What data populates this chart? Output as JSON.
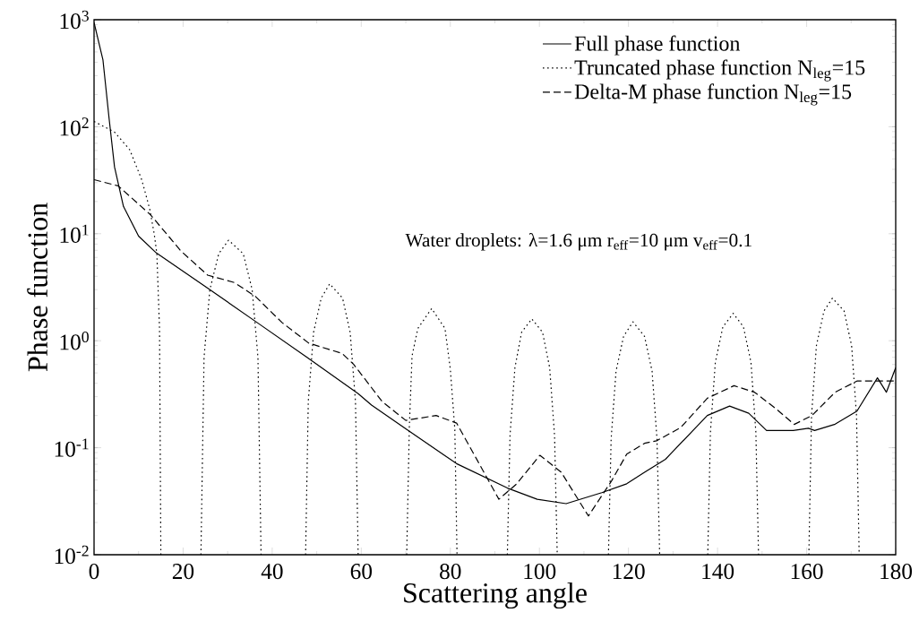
{
  "chart_data": {
    "type": "line",
    "xlabel": "Scattering angle",
    "ylabel": "Phase function",
    "log": "y",
    "xlim": [
      0,
      180
    ],
    "ylim": [
      0.01,
      1000
    ],
    "xticks": [
      0,
      20,
      40,
      60,
      80,
      100,
      120,
      140,
      160,
      180
    ],
    "yticks": [
      {
        "value": 0.01,
        "label": "10$^{-2}$"
      },
      {
        "value": 0.1,
        "label": "10$^{-1}$"
      },
      {
        "value": 1,
        "label": "10$^{0}$"
      },
      {
        "value": 10,
        "label": "10$^{1}$"
      },
      {
        "value": 100,
        "label": "10$^{2}$"
      },
      {
        "value": 1000,
        "label": "10$^{3}$"
      }
    ],
    "legend": "top right",
    "grid": false,
    "annotations": [
      "Water droplets: λ=1.6 μm  r$_{eff}$=10 μm  v$_{eff}$=0.1"
    ],
    "series": [
      {
        "name": "Full phase function",
        "color": "#000000",
        "line_style": "solid",
        "x": [
          0,
          2,
          3.4,
          4.6,
          6.6,
          10,
          14,
          25.5,
          36.6,
          47.6,
          59.3,
          62.3,
          70,
          81.4,
          92.8,
          99.5,
          106,
          114,
          119.6,
          123.6,
          128.3,
          137.7,
          142.7,
          147,
          151,
          157,
          160.4,
          161.8,
          166.4,
          171.3,
          175.9,
          177.9,
          180
        ],
        "values": [
          940,
          420,
          117,
          42,
          18,
          9.5,
          6.6,
          3.1,
          1.48,
          0.71,
          0.32,
          0.25,
          0.15,
          0.071,
          0.042,
          0.033,
          0.03,
          0.038,
          0.046,
          0.059,
          0.078,
          0.2,
          0.245,
          0.21,
          0.145,
          0.145,
          0.152,
          0.145,
          0.166,
          0.22,
          0.45,
          0.33,
          0.56
        ]
      },
      {
        "name": "Truncated phase function   N$_{leg}$=15",
        "color": "#000000",
        "line_style": "dotted",
        "x": [
          0,
          4.6,
          8,
          10.7,
          12.5,
          13.5,
          14.1,
          14.7,
          15,
          19.5,
          24,
          24.7,
          26,
          28,
          30.2,
          33.5,
          35.5,
          36.8,
          37.5,
          42.5,
          47.5,
          48.1,
          49.3,
          51,
          52.9,
          55.8,
          57.5,
          58.7,
          59.3,
          65,
          70.2,
          70.8,
          71.4,
          72.7,
          75.8,
          78.8,
          80,
          81,
          81.5,
          87,
          92.8,
          93.4,
          94.5,
          96,
          98.3,
          100.7,
          102.3,
          103.4,
          104,
          110,
          115.5,
          116.1,
          117.2,
          118.9,
          121,
          123.6,
          125.3,
          126.4,
          127,
          132,
          137.8,
          138.4,
          139.5,
          141.2,
          143.5,
          145.8,
          147.5,
          148.6,
          149.2,
          155,
          160.5,
          161.1,
          162.2,
          163.9,
          165.8,
          168.4,
          170.1,
          171.2,
          171.8
        ],
        "values": [
          112,
          89,
          61,
          32,
          17,
          10,
          6.5,
          1.3,
          0.01,
          null,
          0.01,
          0.7,
          3,
          6.5,
          8.7,
          6.5,
          3,
          0.7,
          0.01,
          null,
          0.01,
          0.27,
          1.2,
          2.5,
          3.4,
          2.5,
          1.2,
          0.27,
          0.01,
          null,
          0.01,
          0.16,
          0.72,
          1.3,
          2,
          1.3,
          0.54,
          0.15,
          0.01,
          null,
          0.01,
          0.13,
          0.56,
          1.2,
          1.6,
          1.2,
          0.56,
          0.13,
          0.01,
          null,
          0.01,
          0.12,
          0.52,
          1.1,
          1.5,
          1.1,
          0.52,
          0.12,
          0.01,
          null,
          0.01,
          0.14,
          0.63,
          1.35,
          1.8,
          1.35,
          0.63,
          0.14,
          0.01,
          null,
          0.01,
          0.2,
          0.9,
          1.9,
          2.5,
          1.9,
          0.9,
          0.2,
          0.01
        ]
      },
      {
        "name": "Delta-M phase function     N$_{leg}$=15",
        "color": "#000000",
        "line_style": "dashed",
        "x": [
          0,
          5.4,
          12.7,
          19.5,
          25.5,
          31.5,
          36.2,
          42.2,
          48.2,
          55.7,
          58.3,
          64.7,
          70,
          76.8,
          81.4,
          86,
          90.9,
          94.9,
          100.1,
          104.9,
          111,
          116.2,
          119.6,
          123.6,
          126.3,
          131.7,
          137.7,
          143.7,
          148.3,
          153.2,
          157.2,
          161.2,
          166.4,
          171.3,
          180
        ],
        "values": [
          32,
          28,
          15,
          6.9,
          4.1,
          3.5,
          2.6,
          1.48,
          0.95,
          0.76,
          0.6,
          0.27,
          0.18,
          0.2,
          0.17,
          0.077,
          0.033,
          0.046,
          0.085,
          0.059,
          0.023,
          0.049,
          0.087,
          0.11,
          0.116,
          0.154,
          0.29,
          0.38,
          0.33,
          0.23,
          0.165,
          0.2,
          0.33,
          0.42,
          0.42
        ]
      }
    ]
  }
}
